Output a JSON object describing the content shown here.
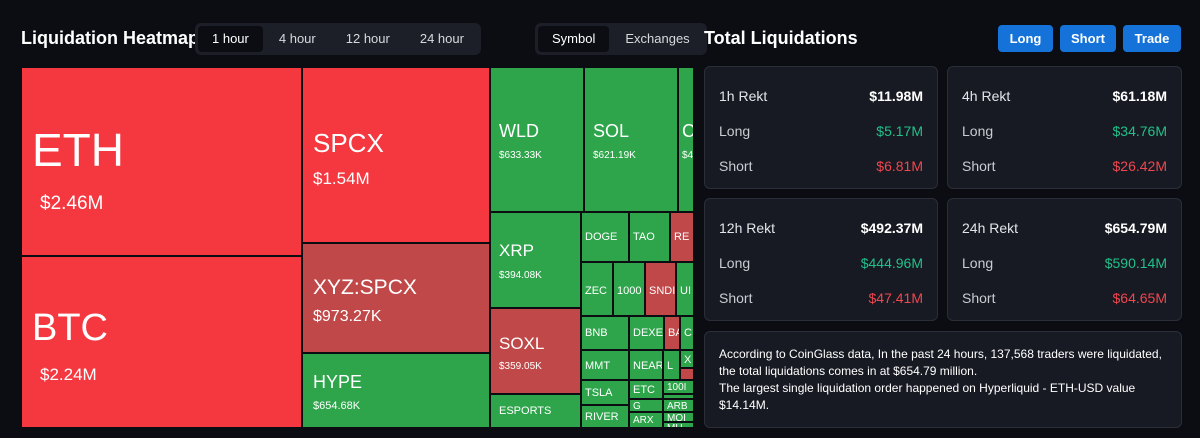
{
  "header": {
    "heatmap_title": "Liquidation Heatmap",
    "time_tabs": [
      "1 hour",
      "4 hour",
      "12 hour",
      "24 hour"
    ],
    "time_active": "1 hour",
    "group_tabs": [
      "Symbol",
      "Exchanges"
    ],
    "group_active": "Symbol",
    "total_title": "Total Liquidations",
    "buttons": {
      "long": "Long",
      "short": "Short",
      "trade": "Trade"
    }
  },
  "colors": {
    "background": "#0b0d13",
    "red": "#f5373f",
    "green": "#2ea54b",
    "muted_red": "#c04848",
    "accent_blue": "#1572d9",
    "positive": "#22c08a",
    "negative": "#f0464f"
  },
  "heatmap": {
    "cells": [
      {
        "symbol": "ETH",
        "value": "$2.46M",
        "side": "red"
      },
      {
        "symbol": "BTC",
        "value": "$2.24M",
        "side": "red"
      },
      {
        "symbol": "SPCX",
        "value": "$1.54M",
        "side": "red"
      },
      {
        "symbol": "XYZ:SPCX",
        "value": "$973.27K",
        "side": "muted_red"
      },
      {
        "symbol": "HYPE",
        "value": "$654.68K",
        "side": "green"
      },
      {
        "symbol": "WLD",
        "value": "$633.33K",
        "side": "green"
      },
      {
        "symbol": "SOL",
        "value": "$621.19K",
        "side": "green"
      },
      {
        "symbol": "C",
        "value": "$4",
        "side": "green"
      },
      {
        "symbol": "XRP",
        "value": "$394.08K",
        "side": "green"
      },
      {
        "symbol": "SOXL",
        "value": "$359.05K",
        "side": "muted_red"
      },
      {
        "symbol": "ESPORTS",
        "value": "",
        "side": "green"
      },
      {
        "symbol": "DOGE",
        "value": "",
        "side": "green"
      },
      {
        "symbol": "TAO",
        "value": "",
        "side": "green"
      },
      {
        "symbol": "RE",
        "value": "",
        "side": "muted_red"
      },
      {
        "symbol": "ZEC",
        "value": "",
        "side": "green"
      },
      {
        "symbol": "1000",
        "value": "",
        "side": "green"
      },
      {
        "symbol": "SNDI",
        "value": "",
        "side": "muted_red"
      },
      {
        "symbol": "UI",
        "value": "",
        "side": "green"
      },
      {
        "symbol": "BNB",
        "value": "",
        "side": "green"
      },
      {
        "symbol": "DEXE",
        "value": "",
        "side": "green"
      },
      {
        "symbol": "BA",
        "value": "",
        "side": "muted_red"
      },
      {
        "symbol": "C",
        "value": "",
        "side": "green"
      },
      {
        "symbol": "MMT",
        "value": "",
        "side": "green"
      },
      {
        "symbol": "NEAR",
        "value": "",
        "side": "green"
      },
      {
        "symbol": "L",
        "value": "",
        "side": "green"
      },
      {
        "symbol": "X",
        "value": "",
        "side": "green"
      },
      {
        "symbol": "",
        "value": "",
        "side": "muted_red"
      },
      {
        "symbol": "TSLA",
        "value": "",
        "side": "green"
      },
      {
        "symbol": "ETC",
        "value": "",
        "side": "green"
      },
      {
        "symbol": "100I",
        "value": "",
        "side": "green"
      },
      {
        "symbol": "",
        "value": "",
        "side": "green"
      },
      {
        "symbol": "ARB",
        "value": "",
        "side": "green"
      },
      {
        "symbol": "RIVER",
        "value": "",
        "side": "green"
      },
      {
        "symbol": "G",
        "value": "",
        "side": "green"
      },
      {
        "symbol": "MOI",
        "value": "",
        "side": "green"
      },
      {
        "symbol": "ARX",
        "value": "",
        "side": "green"
      },
      {
        "symbol": "MU",
        "value": "",
        "side": "green"
      }
    ]
  },
  "stats": [
    {
      "label": "1h Rekt",
      "total": "$11.98M",
      "long_label": "Long",
      "long": "$5.17M",
      "short_label": "Short",
      "short": "$6.81M"
    },
    {
      "label": "4h Rekt",
      "total": "$61.18M",
      "long_label": "Long",
      "long": "$34.76M",
      "short_label": "Short",
      "short": "$26.42M"
    },
    {
      "label": "12h Rekt",
      "total": "$492.37M",
      "long_label": "Long",
      "long": "$444.96M",
      "short_label": "Short",
      "short": "$47.41M"
    },
    {
      "label": "24h Rekt",
      "total": "$654.79M",
      "long_label": "Long",
      "long": "$590.14M",
      "short_label": "Short",
      "short": "$64.65M"
    }
  ],
  "info": {
    "line1": "According to CoinGlass data, In the past 24 hours, 137,568 traders were liquidated, the total liquidations comes in at $654.79 million.",
    "line2": "The largest single liquidation order happened on Hyperliquid - ETH-USD value $14.14M."
  }
}
